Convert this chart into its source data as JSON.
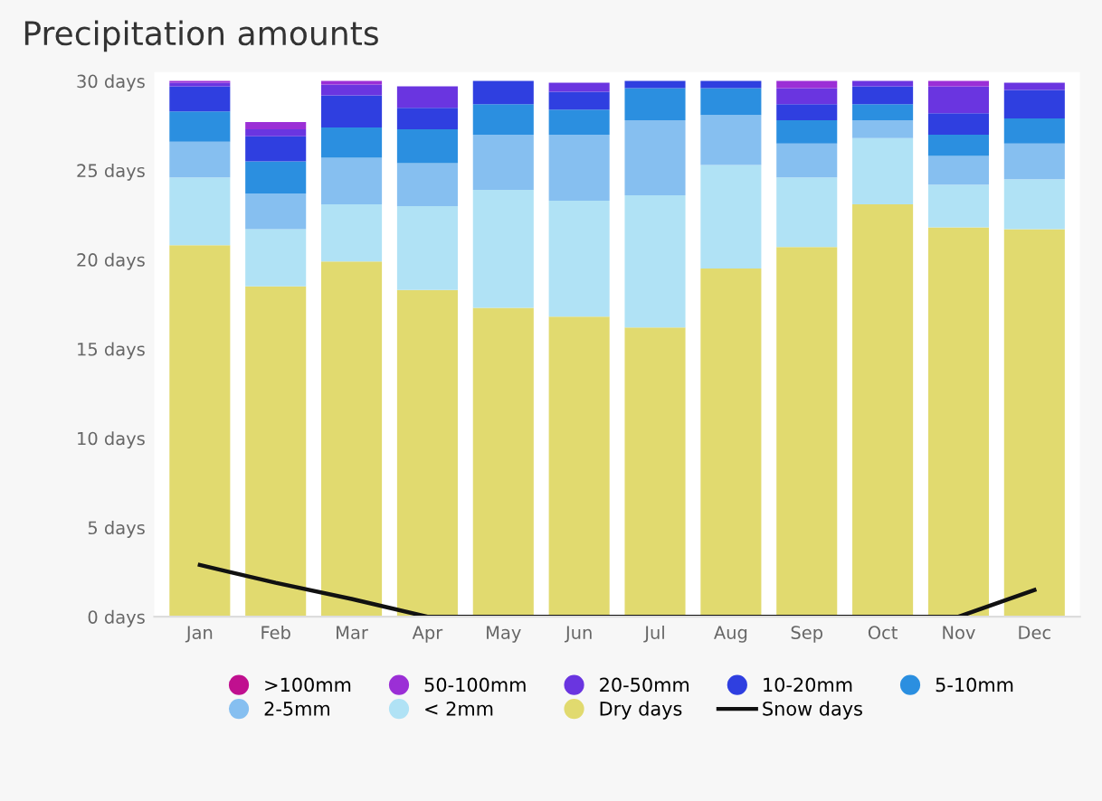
{
  "chart_data": {
    "type": "bar",
    "title": "Precipitation amounts",
    "stacked": true,
    "categories": [
      "Jan",
      "Feb",
      "Mar",
      "Apr",
      "May",
      "Jun",
      "Jul",
      "Aug",
      "Sep",
      "Oct",
      "Nov",
      "Dec"
    ],
    "series": [
      {
        "name": "Dry days",
        "color": "#e1da6f",
        "values": [
          20.8,
          18.5,
          19.9,
          18.3,
          17.3,
          16.8,
          16.2,
          19.5,
          20.7,
          23.1,
          21.8,
          21.7
        ]
      },
      {
        "name": "< 2mm",
        "color": "#b0e2f5",
        "values": [
          3.8,
          3.2,
          3.2,
          4.7,
          6.6,
          6.5,
          7.4,
          5.8,
          3.9,
          3.7,
          2.4,
          2.8
        ]
      },
      {
        "name": "2-5mm",
        "color": "#86bff0",
        "values": [
          2.0,
          2.0,
          2.6,
          2.4,
          3.1,
          3.7,
          4.2,
          2.8,
          1.9,
          1.0,
          1.6,
          2.0
        ]
      },
      {
        "name": "5-10mm",
        "color": "#2b8fe0",
        "values": [
          1.7,
          1.8,
          1.7,
          1.9,
          1.7,
          1.4,
          1.8,
          1.5,
          1.3,
          0.9,
          1.2,
          1.4
        ]
      },
      {
        "name": "10-20mm",
        "color": "#2f3fe0",
        "values": [
          1.4,
          1.4,
          1.8,
          1.2,
          1.3,
          1.0,
          0.4,
          0.4,
          0.9,
          1.0,
          1.2,
          1.6
        ]
      },
      {
        "name": "20-50mm",
        "color": "#6a35e0",
        "values": [
          0.2,
          0.4,
          0.6,
          1.2,
          0,
          0.5,
          0,
          0,
          0.9,
          0.3,
          1.5,
          0.4
        ]
      },
      {
        "name": "50-100mm",
        "color": "#9b2fd6",
        "values": [
          0.1,
          0.4,
          0.2,
          0,
          0,
          0,
          0,
          0,
          0.4,
          0,
          0.3,
          0
        ]
      },
      {
        "name": ">100mm",
        "color": "#c0108f",
        "values": [
          0,
          0,
          0,
          0,
          0,
          0,
          0,
          0,
          0,
          0,
          0,
          0
        ]
      },
      {
        "name": "Snow days",
        "type": "line",
        "color": "#111111",
        "values": [
          2.9,
          1.9,
          1.0,
          0,
          0,
          0,
          0,
          0,
          0,
          0,
          0,
          1.5
        ]
      }
    ],
    "ylim": [
      0,
      30.5
    ],
    "yticks": [
      {
        "value": 0,
        "label": "0 days"
      },
      {
        "value": 5,
        "label": "5 days"
      },
      {
        "value": 10,
        "label": "10 days"
      },
      {
        "value": 15,
        "label": "15 days"
      },
      {
        "value": 20,
        "label": "20 days"
      },
      {
        "value": 25,
        "label": "25 days"
      },
      {
        "value": 30,
        "label": "30 days"
      }
    ],
    "grid": false,
    "legend": "bottom"
  }
}
